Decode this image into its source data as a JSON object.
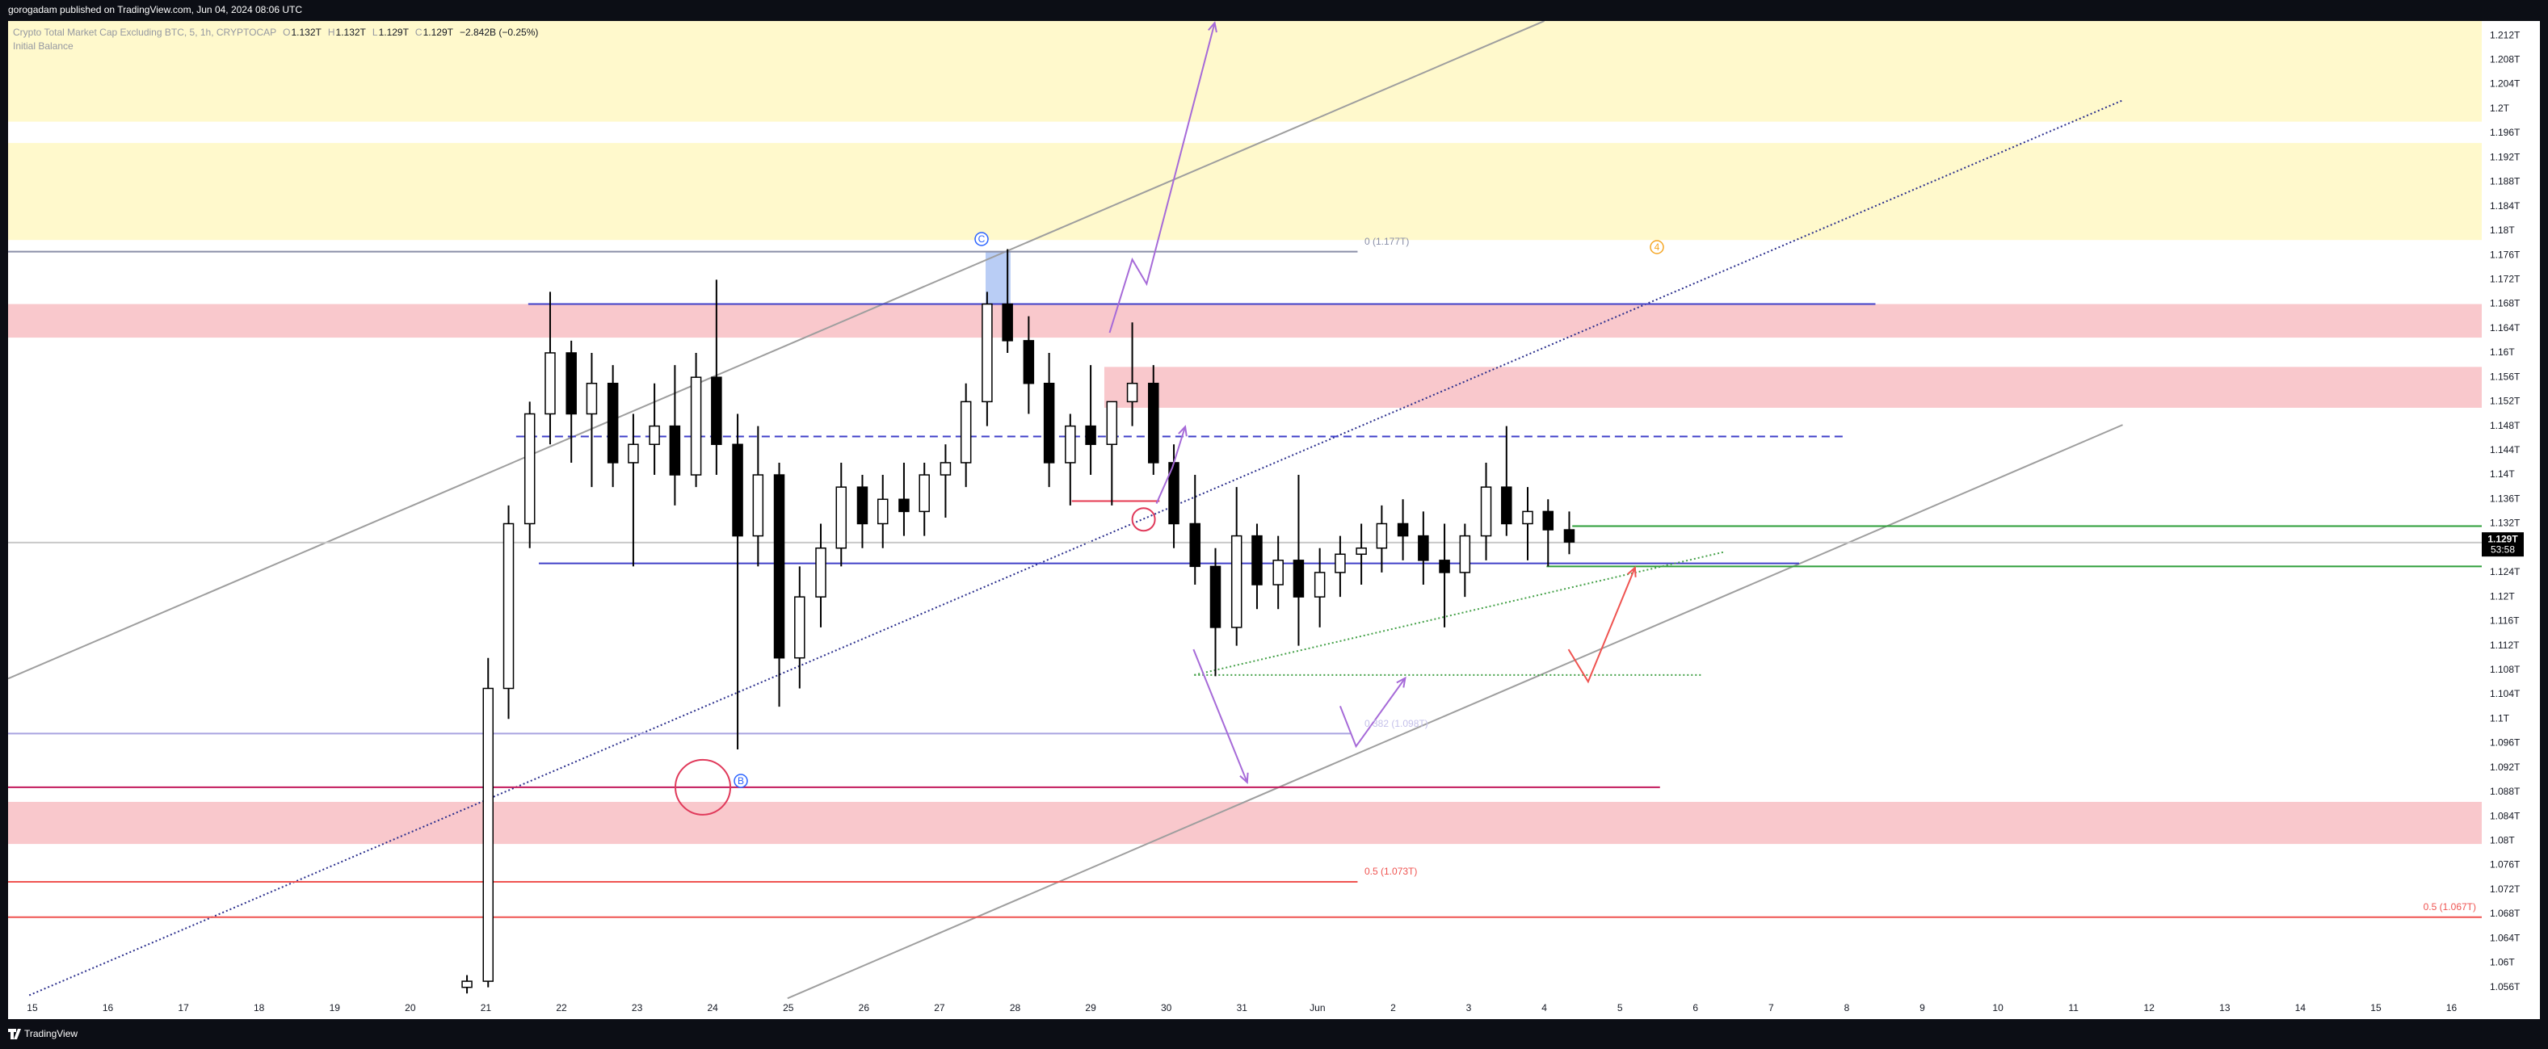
{
  "header": {
    "published": "gorogadam published on TradingView.com, Jun 04, 2024 08:06 UTC"
  },
  "legend": {
    "symbol": "Crypto Total Market Cap Excluding BTC, 5, 1h, CRYPTOCAP",
    "ohlc": [
      {
        "label": "O",
        "value": "1.132T"
      },
      {
        "label": "H",
        "value": "1.132T"
      },
      {
        "label": "L",
        "value": "1.129T"
      },
      {
        "label": "C",
        "value": "1.129T"
      }
    ],
    "change": "−2.842B (−0.25%)",
    "indicator": "Initial Balance"
  },
  "annotations": {
    "fib_0": "0 (1.177T)",
    "fib_0382": "0.382 (1.098T)",
    "fib_05_left": "0.5 (1.073T)",
    "fib_05_right": "0.5 (1.067T)",
    "wave_c": "C",
    "wave_b": "B",
    "wave_4": "4"
  },
  "footer": {
    "brand": "TradingView"
  },
  "chart_data": {
    "type": "candlestick",
    "xlim": [
      -0.32,
      32.4
    ],
    "ylim": [
      1.0541,
      1.2144
    ],
    "xticks": [
      {
        "value": 0,
        "label": "15"
      },
      {
        "value": 1,
        "label": "16"
      },
      {
        "value": 2,
        "label": "17"
      },
      {
        "value": 3,
        "label": "18"
      },
      {
        "value": 4,
        "label": "19"
      },
      {
        "value": 5,
        "label": "20"
      },
      {
        "value": 6,
        "label": "21"
      },
      {
        "value": 7,
        "label": "22"
      },
      {
        "value": 8,
        "label": "23"
      },
      {
        "value": 9,
        "label": "24"
      },
      {
        "value": 10,
        "label": "25"
      },
      {
        "value": 11,
        "label": "26"
      },
      {
        "value": 12,
        "label": "27"
      },
      {
        "value": 13,
        "label": "28"
      },
      {
        "value": 14,
        "label": "29"
      },
      {
        "value": 15,
        "label": "30"
      },
      {
        "value": 16,
        "label": "31"
      },
      {
        "value": 17,
        "label": "Jun"
      },
      {
        "value": 18,
        "label": "2"
      },
      {
        "value": 19,
        "label": "3"
      },
      {
        "value": 20,
        "label": "4"
      },
      {
        "value": 21,
        "label": "5"
      },
      {
        "value": 22,
        "label": "6"
      },
      {
        "value": 23,
        "label": "7"
      },
      {
        "value": 24,
        "label": "8"
      },
      {
        "value": 25,
        "label": "9"
      },
      {
        "value": 26,
        "label": "10"
      },
      {
        "value": 27,
        "label": "11"
      },
      {
        "value": 28,
        "label": "12"
      },
      {
        "value": 29,
        "label": "13"
      },
      {
        "value": 30,
        "label": "14"
      },
      {
        "value": 31,
        "label": "15"
      },
      {
        "value": 32,
        "label": "16"
      }
    ],
    "yticks": [
      {
        "value": 1.212,
        "label": "1.212T"
      },
      {
        "value": 1.208,
        "label": "1.208T"
      },
      {
        "value": 1.204,
        "label": "1.204T"
      },
      {
        "value": 1.2,
        "label": "1.2T"
      },
      {
        "value": 1.196,
        "label": "1.196T"
      },
      {
        "value": 1.192,
        "label": "1.192T"
      },
      {
        "value": 1.188,
        "label": "1.188T"
      },
      {
        "value": 1.184,
        "label": "1.184T"
      },
      {
        "value": 1.18,
        "label": "1.18T"
      },
      {
        "value": 1.176,
        "label": "1.176T"
      },
      {
        "value": 1.172,
        "label": "1.172T"
      },
      {
        "value": 1.168,
        "label": "1.168T"
      },
      {
        "value": 1.164,
        "label": "1.164T"
      },
      {
        "value": 1.16,
        "label": "1.16T"
      },
      {
        "value": 1.156,
        "label": "1.156T"
      },
      {
        "value": 1.152,
        "label": "1.152T"
      },
      {
        "value": 1.148,
        "label": "1.148T"
      },
      {
        "value": 1.144,
        "label": "1.144T"
      },
      {
        "value": 1.14,
        "label": "1.14T"
      },
      {
        "value": 1.136,
        "label": "1.136T"
      },
      {
        "value": 1.132,
        "label": "1.132T"
      },
      {
        "value": 1.128,
        "label": "1.128T"
      },
      {
        "value": 1.124,
        "label": "1.124T"
      },
      {
        "value": 1.12,
        "label": "1.12T"
      },
      {
        "value": 1.116,
        "label": "1.116T"
      },
      {
        "value": 1.112,
        "label": "1.112T"
      },
      {
        "value": 1.108,
        "label": "1.108T"
      },
      {
        "value": 1.104,
        "label": "1.104T"
      },
      {
        "value": 1.1,
        "label": "1.1T"
      },
      {
        "value": 1.096,
        "label": "1.096T"
      },
      {
        "value": 1.092,
        "label": "1.092T"
      },
      {
        "value": 1.088,
        "label": "1.088T"
      },
      {
        "value": 1.084,
        "label": "1.084T"
      },
      {
        "value": 1.08,
        "label": "1.08T"
      },
      {
        "value": 1.076,
        "label": "1.076T"
      },
      {
        "value": 1.072,
        "label": "1.072T"
      },
      {
        "value": 1.068,
        "label": "1.068T"
      },
      {
        "value": 1.064,
        "label": "1.064T"
      },
      {
        "value": 1.06,
        "label": "1.06T"
      },
      {
        "value": 1.056,
        "label": "1.056T"
      }
    ],
    "grid": false,
    "candles": {
      "up_color": "#ffffff",
      "down_color": "#000000",
      "wick_color": "#000000",
      "x": [
        5.75,
        6.03,
        6.3,
        6.58,
        6.85,
        7.13,
        7.4,
        7.68,
        7.95,
        8.23,
        8.5,
        8.78,
        9.05,
        9.33,
        9.6,
        9.88,
        10.15,
        10.43,
        10.7,
        10.98,
        11.25,
        11.53,
        11.8,
        12.08,
        12.35,
        12.63,
        12.9,
        13.18,
        13.45,
        13.73,
        14.0,
        14.28,
        14.55,
        14.83,
        15.1,
        15.38,
        15.65,
        15.93,
        16.2,
        16.48,
        16.75,
        17.03,
        17.3,
        17.58,
        17.85,
        18.13,
        18.4,
        18.68,
        18.95,
        19.23,
        19.5,
        19.78,
        20.05,
        20.33
      ],
      "open": [
        1.056,
        1.057,
        1.105,
        1.132,
        1.15,
        1.16,
        1.15,
        1.155,
        1.142,
        1.145,
        1.148,
        1.14,
        1.156,
        1.145,
        1.13,
        1.14,
        1.11,
        1.12,
        1.128,
        1.138,
        1.132,
        1.136,
        1.134,
        1.14,
        1.142,
        1.152,
        1.168,
        1.162,
        1.155,
        1.142,
        1.148,
        1.145,
        1.152,
        1.155,
        1.142,
        1.132,
        1.125,
        1.115,
        1.13,
        1.122,
        1.126,
        1.12,
        1.124,
        1.127,
        1.128,
        1.132,
        1.13,
        1.126,
        1.124,
        1.13,
        1.138,
        1.132,
        1.134,
        1.131
      ],
      "high": [
        1.058,
        1.11,
        1.135,
        1.152,
        1.17,
        1.162,
        1.16,
        1.158,
        1.15,
        1.155,
        1.158,
        1.16,
        1.172,
        1.15,
        1.148,
        1.142,
        1.125,
        1.132,
        1.142,
        1.14,
        1.14,
        1.142,
        1.142,
        1.145,
        1.155,
        1.17,
        1.177,
        1.166,
        1.16,
        1.15,
        1.158,
        1.15,
        1.165,
        1.158,
        1.145,
        1.14,
        1.128,
        1.138,
        1.132,
        1.13,
        1.14,
        1.128,
        1.13,
        1.132,
        1.135,
        1.136,
        1.134,
        1.132,
        1.132,
        1.142,
        1.148,
        1.138,
        1.136,
        1.134
      ],
      "low": [
        1.055,
        1.056,
        1.1,
        1.128,
        1.145,
        1.142,
        1.138,
        1.138,
        1.125,
        1.14,
        1.135,
        1.138,
        1.14,
        1.095,
        1.125,
        1.102,
        1.105,
        1.115,
        1.125,
        1.128,
        1.128,
        1.13,
        1.13,
        1.133,
        1.138,
        1.148,
        1.16,
        1.15,
        1.138,
        1.135,
        1.14,
        1.135,
        1.148,
        1.14,
        1.128,
        1.122,
        1.107,
        1.112,
        1.118,
        1.118,
        1.112,
        1.115,
        1.12,
        1.122,
        1.124,
        1.126,
        1.122,
        1.115,
        1.12,
        1.126,
        1.13,
        1.126,
        1.125,
        1.127
      ],
      "close": [
        1.057,
        1.105,
        1.132,
        1.15,
        1.16,
        1.15,
        1.155,
        1.142,
        1.145,
        1.148,
        1.14,
        1.156,
        1.145,
        1.13,
        1.14,
        1.11,
        1.12,
        1.128,
        1.138,
        1.132,
        1.136,
        1.134,
        1.14,
        1.142,
        1.152,
        1.168,
        1.162,
        1.155,
        1.142,
        1.148,
        1.145,
        1.152,
        1.155,
        1.142,
        1.132,
        1.125,
        1.115,
        1.13,
        1.122,
        1.126,
        1.12,
        1.124,
        1.127,
        1.128,
        1.132,
        1.13,
        1.126,
        1.124,
        1.13,
        1.138,
        1.132,
        1.134,
        1.131,
        1.129
      ]
    },
    "last_price": {
      "value": 1.129,
      "label": "1.129T",
      "countdown": "53:58",
      "color": "#000000"
    },
    "zones": [
      {
        "x": [
          -0.32,
          32.4
        ],
        "price": [
          1.2144,
          1.1979
        ],
        "color": "#fff9cc"
      },
      {
        "x": [
          -0.32,
          32.4
        ],
        "price": [
          1.1944,
          1.1785
        ],
        "color": "#fff9cc"
      },
      {
        "x": [
          -0.32,
          32.4
        ],
        "price": [
          1.168,
          1.1625
        ],
        "color": "#f9c8cc"
      },
      {
        "x": [
          14.18,
          32.4
        ],
        "price": [
          1.1577,
          1.151
        ],
        "color": "#f9c8cc"
      },
      {
        "x": [
          -0.32,
          32.4
        ],
        "price": [
          1.0864,
          1.0795
        ],
        "color": "#f9c8cc"
      },
      {
        "x": [
          12.61,
          12.94
        ],
        "price": [
          1.1766,
          1.168
        ],
        "color": "#b9cdf5"
      }
    ],
    "lines": [
      {
        "x": [
          -0.32,
          20.0
        ],
        "price": [
          1.1066,
          1.2144
        ],
        "color": "#9e9e9e",
        "style": "solid"
      },
      {
        "x": [
          9.99,
          27.65
        ],
        "price": [
          1.0542,
          1.1482
        ],
        "color": "#9e9e9e",
        "style": "solid"
      },
      {
        "x": [
          -0.04,
          27.65
        ],
        "price": [
          1.0547,
          1.2014
        ],
        "color": "#2a2e8c",
        "style": "dotted"
      },
      {
        "x": [
          -0.32,
          17.53
        ],
        "price": [
          1.1766,
          1.1766
        ],
        "color": "#8a8fa8",
        "style": "solid"
      },
      {
        "x": [
          6.56,
          24.38
        ],
        "price": [
          1.168,
          1.168
        ],
        "color": "#3f3fc8",
        "style": "solid"
      },
      {
        "x": [
          6.4,
          23.95
        ],
        "price": [
          1.1463,
          1.1463
        ],
        "color": "#3f3fc8",
        "style": "dashed"
      },
      {
        "x": [
          6.7,
          23.37
        ],
        "price": [
          1.1255,
          1.1255
        ],
        "color": "#3f3fc8",
        "style": "solid"
      },
      {
        "x": [
          -0.32,
          17.44
        ],
        "price": [
          1.0976,
          1.0976
        ],
        "color": "#a9a4e0",
        "style": "solid"
      },
      {
        "x": [
          -0.32,
          21.53
        ],
        "price": [
          1.0888,
          1.0888
        ],
        "color": "#c2185b",
        "style": "solid"
      },
      {
        "x": [
          -0.32,
          17.53
        ],
        "price": [
          1.0733,
          1.0733
        ],
        "color": "#ef5350",
        "style": "solid"
      },
      {
        "x": [
          -0.32,
          32.4
        ],
        "price": [
          1.0675,
          1.0675
        ],
        "color": "#ef5350",
        "style": "solid"
      },
      {
        "x": [
          20.37,
          32.4
        ],
        "price": [
          1.1316,
          1.1316
        ],
        "color": "#2e9e3a",
        "style": "solid"
      },
      {
        "x": [
          20.03,
          32.4
        ],
        "price": [
          1.125,
          1.125
        ],
        "color": "#2e9e3a",
        "style": "solid"
      },
      {
        "x": [
          15.37,
          22.09
        ],
        "price": [
          1.1072,
          1.1072
        ],
        "color": "#43a047",
        "style": "dotted"
      },
      {
        "x": [
          15.37,
          22.39
        ],
        "price": [
          1.1072,
          1.1274
        ],
        "color": "#43a047",
        "style": "dotted"
      },
      {
        "x": [
          13.75,
          14.91
        ],
        "price": [
          1.1357,
          1.1357
        ],
        "color": "#e53950",
        "style": "solid"
      },
      {
        "x": [
          -0.32,
          32.4
        ],
        "price": [
          1.1289,
          1.1289
        ],
        "color": "#c8c8c8",
        "style": "solid"
      }
    ],
    "paths": [
      {
        "x": [
          14.25,
          14.55,
          14.74,
          15.64
        ],
        "price": [
          1.1633,
          1.1753,
          1.1713,
          1.2141
        ],
        "color": "#a66ad8"
      },
      {
        "x": [
          14.87,
          15.08,
          15.25
        ],
        "price": [
          1.1353,
          1.1412,
          1.1479
        ],
        "color": "#a66ad8"
      },
      {
        "x": [
          15.36,
          16.07
        ],
        "price": [
          1.1114,
          1.0896
        ],
        "color": "#a66ad8"
      },
      {
        "x": [
          17.3,
          17.51,
          18.16
        ],
        "price": [
          1.1021,
          1.0955,
          1.1067
        ],
        "color": "#a66ad8"
      },
      {
        "x": [
          20.32,
          20.58,
          21.2
        ],
        "price": [
          1.1114,
          1.1061,
          1.1248
        ],
        "color": "#ef5350"
      }
    ],
    "circles": [
      {
        "x": 8.87,
        "price": 1.0888,
        "color": "#e0395a",
        "size": 34
      },
      {
        "x": 14.7,
        "price": 1.1327,
        "color": "#e0395a",
        "size": 14
      }
    ]
  }
}
